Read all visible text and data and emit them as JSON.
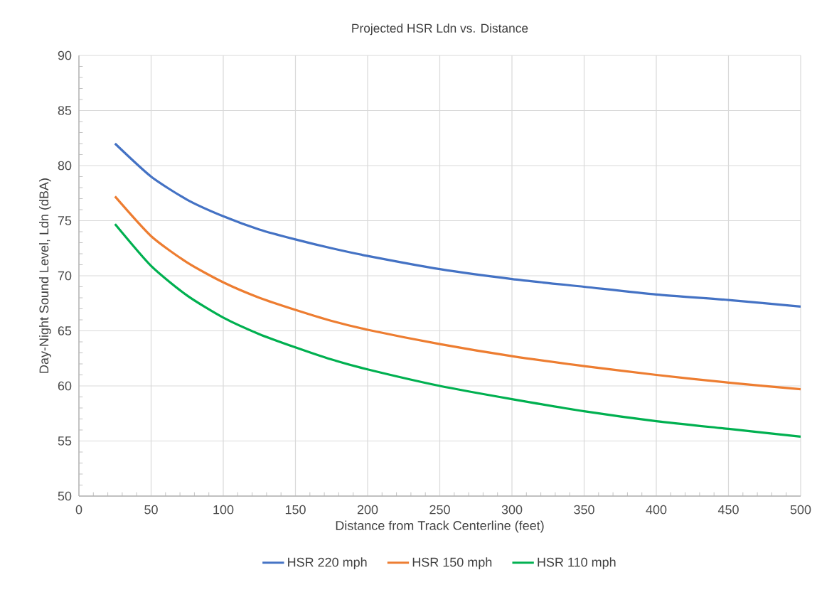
{
  "chart_data": {
    "type": "line",
    "title": "Projected HSR Ldn vs. Distance",
    "xlabel": "Distance from Track Centerline (feet)",
    "ylabel": "Day-Night Sound Level, Ldn (dBA)",
    "x": [
      25,
      50,
      75,
      100,
      125,
      150,
      175,
      200,
      250,
      300,
      350,
      400,
      450,
      500
    ],
    "series": [
      {
        "name": "HSR 220 mph",
        "color": "#4472c4",
        "values": [
          82.0,
          79.0,
          76.9,
          75.4,
          74.2,
          73.3,
          72.5,
          71.8,
          70.6,
          69.7,
          69.0,
          68.3,
          67.8,
          67.2
        ]
      },
      {
        "name": "HSR 150 mph",
        "color": "#ed7d31",
        "values": [
          77.2,
          73.6,
          71.2,
          69.4,
          68.0,
          66.9,
          65.9,
          65.1,
          63.8,
          62.7,
          61.8,
          61.0,
          60.3,
          59.7
        ]
      },
      {
        "name": "HSR 110 mph",
        "color": "#00b050",
        "values": [
          74.7,
          70.9,
          68.2,
          66.2,
          64.7,
          63.5,
          62.4,
          61.5,
          60.0,
          58.8,
          57.7,
          56.8,
          56.1,
          55.4
        ]
      }
    ],
    "xlim": [
      0,
      500
    ],
    "ylim": [
      50,
      90
    ],
    "xticks": [
      0,
      50,
      100,
      150,
      200,
      250,
      300,
      350,
      400,
      450,
      500
    ],
    "yticks": [
      50,
      55,
      60,
      65,
      70,
      75,
      80,
      85,
      90
    ],
    "grid": true,
    "legend": "bottom"
  }
}
